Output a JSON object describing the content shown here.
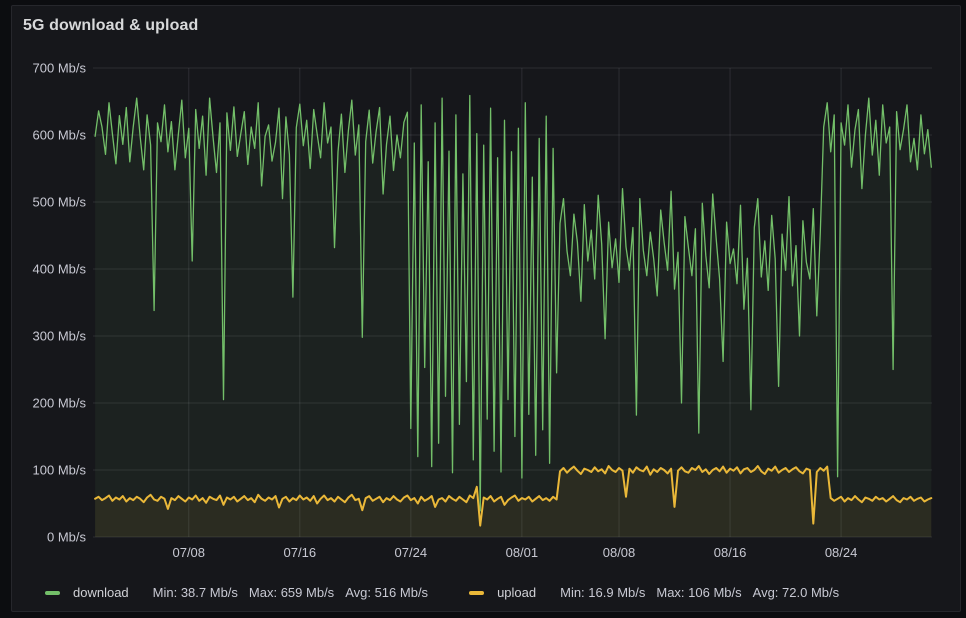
{
  "panel": {
    "title": "5G download & upload"
  },
  "chart_data": {
    "type": "line",
    "title": "5G download & upload",
    "unit": "Mb/s",
    "ylim": [
      0,
      700
    ],
    "x_domain": [
      0.1,
      60.55
    ],
    "x_start": 0.25,
    "x_step": 0.25,
    "grid": true,
    "legend_position": "bottom",
    "y_ticks": [
      {
        "v": 0,
        "label": "0 Mb/s"
      },
      {
        "v": 100,
        "label": "100 Mb/s"
      },
      {
        "v": 200,
        "label": "200 Mb/s"
      },
      {
        "v": 300,
        "label": "300 Mb/s"
      },
      {
        "v": 400,
        "label": "400 Mb/s"
      },
      {
        "v": 500,
        "label": "500 Mb/s"
      },
      {
        "v": 600,
        "label": "600 Mb/s"
      },
      {
        "v": 700,
        "label": "700 Mb/s"
      }
    ],
    "x_ticks": [
      {
        "d": 7,
        "label": "07/08"
      },
      {
        "d": 15,
        "label": "07/16"
      },
      {
        "d": 23,
        "label": "07/24"
      },
      {
        "d": 31,
        "label": "08/01"
      },
      {
        "d": 38,
        "label": "08/08"
      },
      {
        "d": 46,
        "label": "08/16"
      },
      {
        "d": 54,
        "label": "08/24"
      }
    ],
    "series": [
      {
        "name": "download",
        "color": "#73BF69",
        "stats": [
          "Min: 38.7 Mb/s",
          "Max: 659 Mb/s",
          "Avg: 516 Mb/s"
        ],
        "values": [
          598,
          636,
          612,
          571,
          648,
          602,
          557,
          629,
          586,
          641,
          560,
          612,
          655,
          597,
          548,
          630,
          585,
          338,
          618,
          590,
          645,
          575,
          620,
          548,
          602,
          652,
          566,
          610,
          412,
          638,
          580,
          628,
          540,
          655,
          596,
          544,
          618,
          205,
          633,
          577,
          642,
          568,
          602,
          635,
          556,
          612,
          580,
          648,
          524,
          598,
          615,
          561,
          589,
          640,
          505,
          627,
          571,
          358,
          611,
          646,
          584,
          622,
          550,
          638,
          602,
          566,
          648,
          588,
          612,
          432,
          575,
          631,
          544,
          607,
          652,
          570,
          615,
          298,
          590,
          637,
          558,
          605,
          641,
          512,
          586,
          628,
          547,
          600,
          566,
          619,
          634,
          162,
          588,
          120,
          645,
          253,
          560,
          105,
          618,
          140,
          655,
          210,
          576,
          96,
          630,
          168,
          542,
          232,
          659,
          115,
          602,
          39,
          585,
          176,
          640,
          128,
          566,
          97,
          622,
          205,
          575,
          150,
          610,
          88,
          648,
          183,
          537,
          122,
          595,
          160,
          628,
          110,
          580,
          245,
          468,
          505,
          427,
          390,
          482,
          440,
          352,
          496,
          412,
          458,
          385,
          510,
          437,
          296,
          470,
          402,
          445,
          380,
          520,
          433,
          398,
          462,
          182,
          505,
          428,
          390,
          455,
          415,
          360,
          488,
          440,
          398,
          516,
          370,
          425,
          200,
          478,
          432,
          390,
          460,
          155,
          498,
          420,
          372,
          512,
          445,
          385,
          262,
          470,
          408,
          430,
          378,
          495,
          340,
          416,
          190,
          462,
          505,
          388,
          442,
          368,
          480,
          415,
          225,
          452,
          398,
          508,
          375,
          435,
          300,
          472,
          410,
          385,
          490,
          330,
          455,
          612,
          648,
          575,
          630,
          90,
          618,
          585,
          645,
          552,
          608,
          638,
          520,
          600,
          655,
          570,
          622,
          540,
          645,
          588,
          612,
          250,
          635,
          578,
          608,
          645,
          560,
          595,
          548,
          630,
          572,
          608,
          552
        ]
      },
      {
        "name": "upload",
        "color": "#EAB839",
        "stats": [
          "Min: 16.9 Mb/s",
          "Max: 106 Mb/s",
          "Avg: 72.0 Mb/s"
        ],
        "values": [
          57,
          60,
          55,
          58,
          62,
          54,
          59,
          56,
          61,
          53,
          58,
          55,
          60,
          57,
          52,
          59,
          63,
          56,
          54,
          60,
          57,
          42,
          58,
          55,
          61,
          57,
          53,
          59,
          56,
          62,
          54,
          58,
          51,
          60,
          57,
          55,
          62,
          48,
          59,
          56,
          60,
          53,
          57,
          61,
          55,
          58,
          52,
          63,
          57,
          54,
          59,
          56,
          61,
          44,
          57,
          60,
          53,
          58,
          55,
          62,
          56,
          59,
          54,
          61,
          50,
          57,
          62,
          55,
          58,
          53,
          60,
          56,
          52,
          59,
          63,
          55,
          57,
          40,
          58,
          61,
          54,
          57,
          60,
          52,
          58,
          55,
          61,
          56,
          53,
          59,
          62,
          55,
          58,
          50,
          60,
          54,
          57,
          61,
          45,
          56,
          58,
          53,
          61,
          57,
          54,
          60,
          56,
          52,
          62,
          58,
          75,
          17,
          59,
          56,
          61,
          53,
          57,
          60,
          48,
          55,
          59,
          62,
          54,
          58,
          56,
          60,
          53,
          57,
          61,
          55,
          58,
          54,
          60,
          56,
          98,
          103,
          96,
          101,
          105,
          99,
          94,
          102,
          100,
          97,
          104,
          98,
          101,
          95,
          106,
          100,
          97,
          103,
          99,
          60,
          102,
          96,
          104,
          100,
          98,
          105,
          93,
          101,
          97,
          103,
          100,
          95,
          102,
          45,
          99,
          104,
          98,
          96,
          103,
          100,
          106,
          97,
          101,
          94,
          100,
          103,
          98,
          105,
          96,
          102,
          99,
          104,
          95,
          101,
          103,
          97,
          100,
          106,
          98,
          94,
          102,
          99,
          105,
          96,
          100,
          103,
          97,
          101,
          104,
          98,
          95,
          102,
          100,
          20,
          97,
          103,
          99,
          105,
          58,
          54,
          57,
          60,
          53,
          58,
          55,
          61,
          56,
          52,
          59,
          57,
          54,
          60,
          56,
          58,
          53,
          57,
          61,
          55,
          52,
          58,
          56,
          60,
          54,
          57,
          59,
          53,
          56,
          58
        ]
      }
    ]
  }
}
